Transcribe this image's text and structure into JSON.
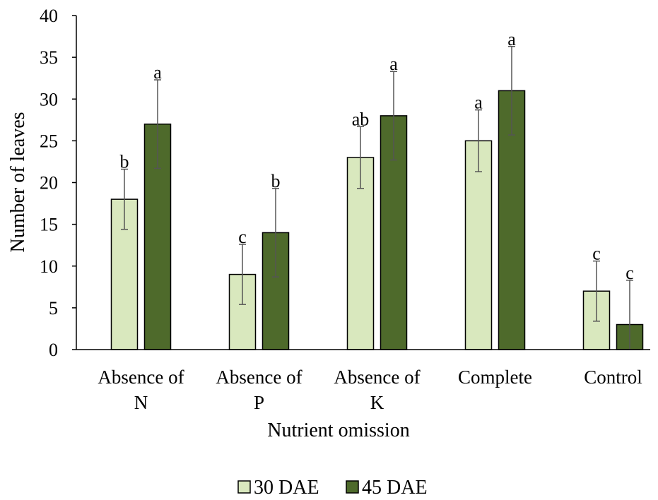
{
  "chart_data": {
    "type": "bar",
    "categories": [
      [
        "Absence of",
        "N"
      ],
      [
        "Absence of",
        "P"
      ],
      [
        "Absence of",
        "K"
      ],
      [
        "Complete"
      ],
      [
        "Control"
      ]
    ],
    "series": [
      {
        "name": "30 DAE",
        "color": "#d9e8be",
        "values": [
          18,
          9,
          23,
          25,
          7
        ],
        "errors": [
          3.6,
          3.6,
          3.7,
          3.7,
          3.6
        ],
        "labels": [
          "b",
          "c",
          "ab",
          "a",
          "c"
        ]
      },
      {
        "name": "45 DAE",
        "color": "#4e6a2b",
        "values": [
          27,
          14,
          28,
          31,
          3
        ],
        "errors": [
          5.3,
          5.3,
          5.3,
          5.3,
          5.3
        ],
        "labels": [
          "a",
          "b",
          "a",
          "a",
          "c"
        ]
      }
    ],
    "xlabel": "Nutrient omission",
    "ylabel": "Number of leaves",
    "ylim": [
      0,
      40
    ],
    "yticks": [
      0,
      5,
      10,
      15,
      20,
      25,
      30,
      35,
      40
    ],
    "grid": false,
    "legend": "bottom"
  }
}
